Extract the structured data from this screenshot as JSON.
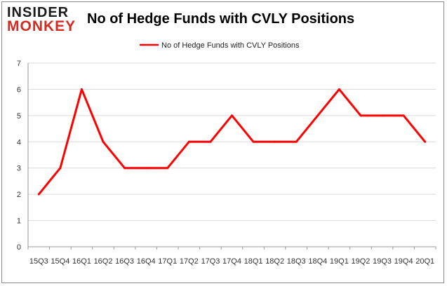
{
  "branding": {
    "logo_line1": "INSIDER",
    "logo_line2": "MONKEY"
  },
  "colors": {
    "series": "#ff0000",
    "grid": "#d9d9d9",
    "axis": "#999999"
  },
  "chart_data": {
    "type": "line",
    "title": "No of Hedge Funds with CVLY Positions",
    "xlabel": "",
    "ylabel": "",
    "x": [
      "15Q3",
      "15Q4",
      "16Q1",
      "16Q2",
      "16Q3",
      "16Q4",
      "17Q1",
      "17Q2",
      "17Q3",
      "17Q4",
      "18Q1",
      "18Q2",
      "18Q3",
      "18Q4",
      "19Q1",
      "19Q2",
      "19Q3",
      "19Q4",
      "20Q1"
    ],
    "series": [
      {
        "name": "No of Hedge Funds with CVLY Positions",
        "values": [
          2,
          3,
          6,
          4,
          3,
          3,
          3,
          4,
          4,
          5,
          4,
          4,
          4,
          5,
          6,
          5,
          5,
          5,
          4
        ]
      }
    ],
    "ylim": [
      0,
      7
    ],
    "yticks": [
      0,
      1,
      2,
      3,
      4,
      5,
      6,
      7
    ],
    "grid": true,
    "legend": "top-center"
  }
}
